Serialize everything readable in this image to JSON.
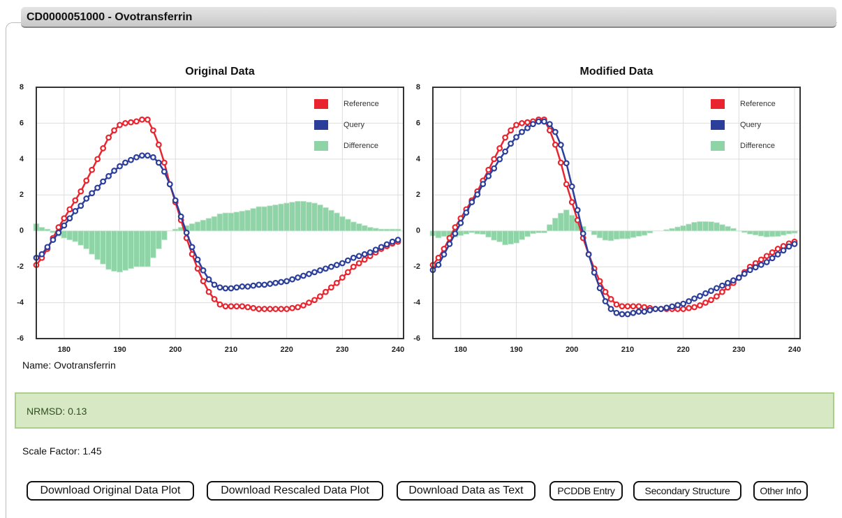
{
  "header": {
    "title": "CD0000051000 - Ovotransferrin"
  },
  "chart_data": [
    {
      "type": "line",
      "title": "Original Data",
      "x": [
        175,
        176,
        177,
        178,
        179,
        180,
        181,
        182,
        183,
        184,
        185,
        186,
        187,
        188,
        189,
        190,
        191,
        192,
        193,
        194,
        195,
        196,
        197,
        198,
        199,
        200,
        201,
        202,
        203,
        204,
        205,
        206,
        207,
        208,
        209,
        210,
        211,
        212,
        213,
        214,
        215,
        216,
        217,
        218,
        219,
        220,
        221,
        222,
        223,
        224,
        225,
        226,
        227,
        228,
        229,
        230,
        231,
        232,
        233,
        234,
        235,
        236,
        237,
        238,
        239,
        240
      ],
      "xlim": [
        175,
        241
      ],
      "xticks": [
        180,
        190,
        200,
        210,
        220,
        230,
        240
      ],
      "ylim": [
        -6,
        8
      ],
      "yticks": [
        -6,
        -4,
        -2,
        0,
        2,
        4,
        6,
        8
      ],
      "grid": true,
      "legend": "upper right",
      "series": [
        {
          "name": "Reference",
          "color": "#e8252f",
          "values": [
            -1.9,
            -1.5,
            -1.0,
            -0.4,
            0.2,
            0.7,
            1.2,
            1.7,
            2.2,
            2.8,
            3.4,
            4.0,
            4.6,
            5.2,
            5.6,
            5.9,
            6.0,
            6.05,
            6.1,
            6.2,
            6.2,
            5.6,
            4.8,
            3.8,
            2.6,
            1.6,
            0.6,
            -0.4,
            -1.3,
            -2.1,
            -2.8,
            -3.4,
            -3.8,
            -4.1,
            -4.2,
            -4.2,
            -4.2,
            -4.2,
            -4.25,
            -4.3,
            -4.35,
            -4.35,
            -4.35,
            -4.35,
            -4.35,
            -4.35,
            -4.3,
            -4.25,
            -4.15,
            -4.0,
            -3.85,
            -3.65,
            -3.4,
            -3.15,
            -2.9,
            -2.6,
            -2.3,
            -2.0,
            -1.8,
            -1.6,
            -1.4,
            -1.2,
            -1.0,
            -0.85,
            -0.7,
            -0.6
          ]
        },
        {
          "name": "Query",
          "color": "#2b3e9a",
          "values": [
            -1.5,
            -1.3,
            -0.9,
            -0.5,
            -0.1,
            0.3,
            0.7,
            1.1,
            1.4,
            1.8,
            2.1,
            2.4,
            2.75,
            3.05,
            3.35,
            3.6,
            3.8,
            3.95,
            4.1,
            4.2,
            4.2,
            4.1,
            3.8,
            3.3,
            2.6,
            1.7,
            0.8,
            -0.1,
            -0.9,
            -1.6,
            -2.2,
            -2.7,
            -3.0,
            -3.15,
            -3.2,
            -3.2,
            -3.15,
            -3.1,
            -3.1,
            -3.05,
            -3.0,
            -3.0,
            -2.95,
            -2.9,
            -2.85,
            -2.8,
            -2.7,
            -2.6,
            -2.5,
            -2.4,
            -2.3,
            -2.2,
            -2.1,
            -2.0,
            -1.9,
            -1.8,
            -1.65,
            -1.5,
            -1.4,
            -1.3,
            -1.2,
            -1.05,
            -0.9,
            -0.75,
            -0.6,
            -0.5
          ]
        },
        {
          "name": "Difference",
          "type": "bar",
          "color": "#8fd4a6",
          "values": [
            0.4,
            0.2,
            0.1,
            -0.1,
            -0.3,
            -0.4,
            -0.5,
            -0.6,
            -0.8,
            -1.0,
            -1.3,
            -1.6,
            -1.85,
            -2.15,
            -2.25,
            -2.3,
            -2.2,
            -2.1,
            -2.0,
            -2.0,
            -2.0,
            -1.5,
            -1.0,
            -0.5,
            0,
            0.1,
            0.2,
            0.3,
            0.4,
            0.5,
            0.6,
            0.7,
            0.8,
            0.95,
            1.0,
            1.0,
            1.05,
            1.1,
            1.15,
            1.25,
            1.35,
            1.35,
            1.4,
            1.45,
            1.5,
            1.55,
            1.6,
            1.65,
            1.65,
            1.6,
            1.55,
            1.45,
            1.3,
            1.15,
            1.0,
            0.8,
            0.65,
            0.5,
            0.4,
            0.3,
            0.2,
            0.15,
            0.1,
            0.1,
            0.1,
            0.1
          ]
        }
      ]
    },
    {
      "type": "line",
      "title": "Modified Data",
      "x": [
        175,
        176,
        177,
        178,
        179,
        180,
        181,
        182,
        183,
        184,
        185,
        186,
        187,
        188,
        189,
        190,
        191,
        192,
        193,
        194,
        195,
        196,
        197,
        198,
        199,
        200,
        201,
        202,
        203,
        204,
        205,
        206,
        207,
        208,
        209,
        210,
        211,
        212,
        213,
        214,
        215,
        216,
        217,
        218,
        219,
        220,
        221,
        222,
        223,
        224,
        225,
        226,
        227,
        228,
        229,
        230,
        231,
        232,
        233,
        234,
        235,
        236,
        237,
        238,
        239,
        240
      ],
      "xlim": [
        175,
        241
      ],
      "xticks": [
        180,
        190,
        200,
        210,
        220,
        230,
        240
      ],
      "ylim": [
        -6,
        8
      ],
      "yticks": [
        -6,
        -4,
        -2,
        0,
        2,
        4,
        6,
        8
      ],
      "grid": true,
      "legend": "upper right",
      "series": [
        {
          "name": "Reference",
          "color": "#e8252f",
          "values": [
            -1.9,
            -1.5,
            -1.0,
            -0.4,
            0.2,
            0.7,
            1.2,
            1.7,
            2.2,
            2.8,
            3.4,
            4.0,
            4.6,
            5.2,
            5.6,
            5.9,
            6.0,
            6.05,
            6.1,
            6.2,
            6.2,
            5.6,
            4.8,
            3.8,
            2.6,
            1.6,
            0.6,
            -0.4,
            -1.3,
            -2.1,
            -2.8,
            -3.4,
            -3.8,
            -4.1,
            -4.2,
            -4.2,
            -4.2,
            -4.2,
            -4.25,
            -4.3,
            -4.35,
            -4.35,
            -4.35,
            -4.35,
            -4.35,
            -4.35,
            -4.3,
            -4.25,
            -4.15,
            -4.0,
            -3.85,
            -3.65,
            -3.4,
            -3.15,
            -2.9,
            -2.6,
            -2.3,
            -2.0,
            -1.8,
            -1.6,
            -1.4,
            -1.2,
            -1.0,
            -0.85,
            -0.7,
            -0.6
          ]
        },
        {
          "name": "Query",
          "color": "#2b3e9a",
          "values": [
            -2.18,
            -1.89,
            -1.31,
            -0.73,
            -0.15,
            0.44,
            1.02,
            1.6,
            2.03,
            2.61,
            3.05,
            3.48,
            3.99,
            4.42,
            4.86,
            5.22,
            5.51,
            5.73,
            5.95,
            6.09,
            6.09,
            5.95,
            5.51,
            4.79,
            3.77,
            2.47,
            1.16,
            -0.15,
            -1.31,
            -2.32,
            -3.19,
            -3.92,
            -4.35,
            -4.57,
            -4.64,
            -4.64,
            -4.57,
            -4.5,
            -4.5,
            -4.42,
            -4.35,
            -4.35,
            -4.28,
            -4.21,
            -4.13,
            -4.06,
            -3.92,
            -3.77,
            -3.63,
            -3.48,
            -3.34,
            -3.19,
            -3.05,
            -2.9,
            -2.76,
            -2.61,
            -2.39,
            -2.18,
            -2.03,
            -1.89,
            -1.74,
            -1.52,
            -1.31,
            -1.09,
            -0.87,
            -0.73
          ]
        },
        {
          "name": "Difference",
          "type": "bar",
          "color": "#8fd4a6",
          "values": [
            -0.28,
            -0.39,
            -0.31,
            -0.33,
            -0.35,
            -0.26,
            -0.18,
            -0.1,
            -0.17,
            -0.19,
            -0.35,
            -0.52,
            -0.61,
            -0.78,
            -0.74,
            -0.68,
            -0.49,
            -0.32,
            -0.15,
            -0.11,
            -0.11,
            0.35,
            0.71,
            0.99,
            1.17,
            0.87,
            0.56,
            0.25,
            -0.01,
            -0.22,
            -0.39,
            -0.52,
            -0.55,
            -0.47,
            -0.44,
            -0.44,
            -0.37,
            -0.3,
            -0.25,
            -0.12,
            0,
            0,
            0.07,
            0.14,
            0.22,
            0.29,
            0.38,
            0.48,
            0.52,
            0.52,
            0.51,
            0.46,
            0.35,
            0.25,
            0.14,
            -0.01,
            -0.09,
            -0.18,
            -0.23,
            -0.29,
            -0.34,
            -0.32,
            -0.31,
            -0.24,
            -0.17,
            -0.13
          ]
        }
      ]
    }
  ],
  "info": {
    "name": "Name: Ovotransferrin",
    "nrmsd": "NRMSD: 0.13",
    "scale_factor": "Scale Factor: 1.45"
  },
  "buttons": [
    "Download Original Data Plot",
    "Download Rescaled Data Plot",
    "Download Data as Text",
    "PCDDB Entry",
    "Secondary Structure",
    "Other Info"
  ]
}
